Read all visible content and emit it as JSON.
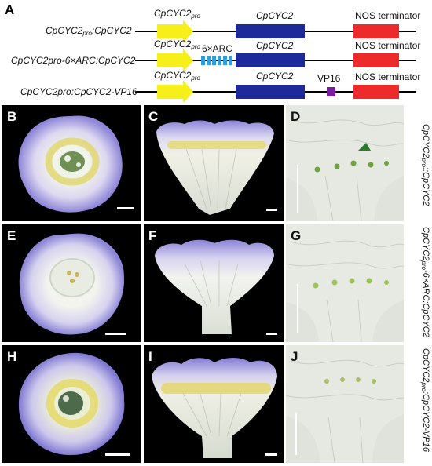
{
  "panelA": {
    "letter": "A",
    "constructs": [
      {
        "name_main": "CpCYC2",
        "name_sub": "pro",
        "name_rest": ":CpCYC2",
        "promoter_main": "CpCYC2",
        "promoter_sub": "pro",
        "gene": "CpCYC2",
        "terminator": "NOS terminator"
      },
      {
        "name_main": "CpCYC2pro-6×ARC:CpCYC2",
        "name_sub": "",
        "name_rest": "",
        "promoter_main": "CpCYC2",
        "promoter_sub": "pro",
        "insert": "6×ARC",
        "gene": "CpCYC2",
        "terminator": "NOS terminator"
      },
      {
        "name_main": "CpCYC2pro:CpCYC2-VP16",
        "name_sub": "",
        "name_rest": "",
        "promoter_main": "CpCYC2",
        "promoter_sub": "pro",
        "fusion": "VP16",
        "gene": "CpCYC2",
        "terminator": "NOS terminator"
      }
    ],
    "colors": {
      "promoter": "#f7ef1a",
      "gene": "#1f2a9a",
      "terminator": "#ee2b2b",
      "arc": "#2aa0e0",
      "vp16": "#7a1f9a"
    }
  },
  "panels": {
    "B": "B",
    "C": "C",
    "D": "D",
    "E": "E",
    "F": "F",
    "G": "G",
    "H": "H",
    "I": "I",
    "J": "J"
  },
  "row_labels": [
    {
      "main": "CpCYC2",
      "sub": "pro",
      "rest": "::CpCYC2"
    },
    {
      "main": "CpCYC2",
      "sub": "pro",
      "rest": "-6×ARC:CpCYC2"
    },
    {
      "main": "CpCYC2",
      "sub": "pro",
      "rest": ":CpCYC2-VP16"
    }
  ]
}
